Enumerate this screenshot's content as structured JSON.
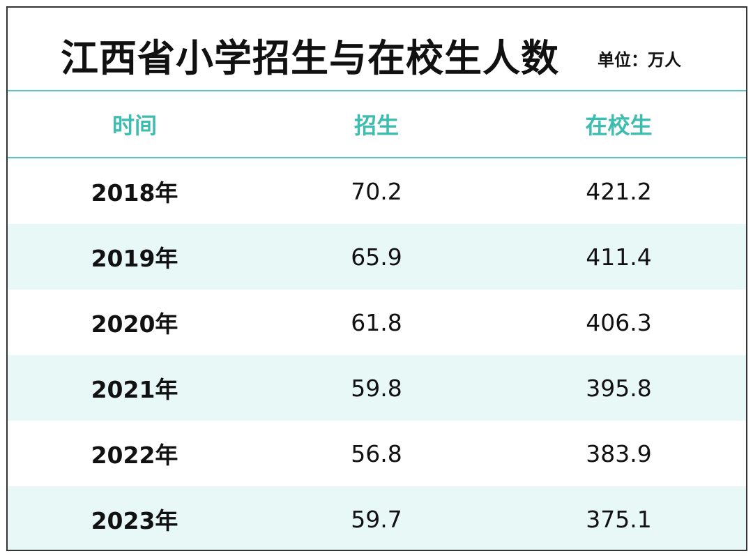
{
  "title": "江西省小学招生与在校生人数",
  "unit": "单位：万人",
  "headers": [
    "时间",
    "招生",
    "在校生"
  ],
  "rows": [
    {
      "year": "2018年",
      "enrollment": "70.2",
      "in_school": "421.2"
    },
    {
      "year": "2019年",
      "enrollment": "65.9",
      "in_school": "411.4"
    },
    {
      "year": "2020年",
      "enrollment": "61.8",
      "in_school": "406.3"
    },
    {
      "year": "2021年",
      "enrollment": "59.8",
      "in_school": "395.8"
    },
    {
      "year": "2022年",
      "enrollment": "56.8",
      "in_school": "383.9"
    },
    {
      "year": "2023年",
      "enrollment": "59.7",
      "in_school": "375.1"
    }
  ],
  "colors": {
    "accent": "#3dbdb0",
    "stripe": "#e8f8f7"
  }
}
